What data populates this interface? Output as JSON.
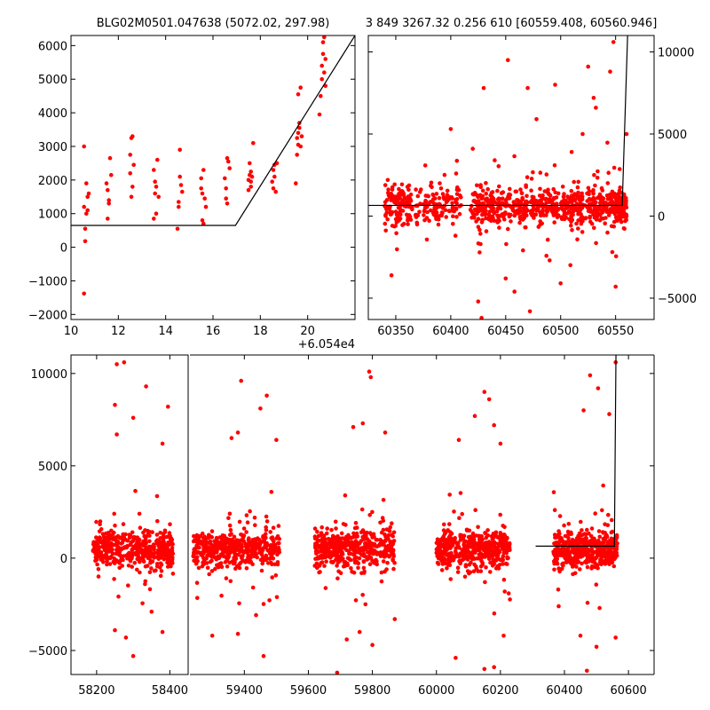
{
  "titles": {
    "left": "BLG02M0501.047638 (5072.02, 297.98)",
    "right": "3 849 3267.32 0.256 610 [60559.408, 60560.946]"
  },
  "chart_data": [
    {
      "id": "top-left",
      "type": "scatter",
      "title": "BLG02M0501.047638 (5072.02, 297.98)",
      "x_offset_label": "+6.054e4",
      "xlim": [
        10,
        22
      ],
      "ylim": [
        -2150,
        6300
      ],
      "xticks": [
        10,
        12,
        14,
        16,
        18,
        20
      ],
      "yticks": [
        -2000,
        -1000,
        0,
        1000,
        2000,
        3000,
        4000,
        5000,
        6000
      ],
      "points": [
        [
          10.55,
          3000
        ],
        [
          10.55,
          1200
        ],
        [
          10.6,
          550
        ],
        [
          10.6,
          180
        ],
        [
          10.55,
          -1380
        ],
        [
          10.65,
          1900
        ],
        [
          10.7,
          1500
        ],
        [
          10.7,
          1100
        ],
        [
          10.75,
          1600
        ],
        [
          10.65,
          1000
        ],
        [
          11.5,
          1900
        ],
        [
          11.55,
          1700
        ],
        [
          11.6,
          1400
        ],
        [
          11.55,
          850
        ],
        [
          11.65,
          2650
        ],
        [
          11.7,
          2150
        ],
        [
          11.6,
          1300
        ],
        [
          12.5,
          2750
        ],
        [
          12.55,
          3250
        ],
        [
          12.6,
          3300
        ],
        [
          12.5,
          2200
        ],
        [
          12.55,
          1500
        ],
        [
          12.6,
          1800
        ],
        [
          12.65,
          2450
        ],
        [
          13.5,
          2300
        ],
        [
          13.55,
          1950
        ],
        [
          13.6,
          1800
        ],
        [
          13.55,
          1600
        ],
        [
          13.6,
          1000
        ],
        [
          13.65,
          2600
        ],
        [
          13.5,
          850
        ],
        [
          13.7,
          1500
        ],
        [
          14.5,
          550
        ],
        [
          14.55,
          1200
        ],
        [
          14.6,
          2900
        ],
        [
          14.6,
          2100
        ],
        [
          14.65,
          1850
        ],
        [
          14.55,
          1350
        ],
        [
          14.7,
          1650
        ],
        [
          15.5,
          1750
        ],
        [
          15.55,
          1600
        ],
        [
          15.5,
          2050
        ],
        [
          15.6,
          2300
        ],
        [
          15.55,
          800
        ],
        [
          15.6,
          700
        ],
        [
          15.65,
          1450
        ],
        [
          15.7,
          1200
        ],
        [
          16.5,
          2050
        ],
        [
          16.55,
          1750
        ],
        [
          16.6,
          2650
        ],
        [
          16.65,
          2550
        ],
        [
          16.55,
          1450
        ],
        [
          16.6,
          1300
        ],
        [
          16.7,
          2350
        ],
        [
          17.5,
          2000
        ],
        [
          17.55,
          2150
        ],
        [
          17.6,
          1950
        ],
        [
          17.55,
          2500
        ],
        [
          17.6,
          1800
        ],
        [
          17.65,
          2100
        ],
        [
          17.7,
          3100
        ],
        [
          17.5,
          1700
        ],
        [
          17.6,
          2250
        ],
        [
          18.5,
          1950
        ],
        [
          18.55,
          2300
        ],
        [
          18.6,
          2450
        ],
        [
          18.55,
          1750
        ],
        [
          18.6,
          2100
        ],
        [
          18.65,
          1650
        ],
        [
          18.7,
          2500
        ],
        [
          19.5,
          1900
        ],
        [
          19.55,
          2750
        ],
        [
          19.6,
          3050
        ],
        [
          19.55,
          3250
        ],
        [
          19.6,
          3400
        ],
        [
          19.65,
          3550
        ],
        [
          19.7,
          4750
        ],
        [
          19.6,
          4550
        ],
        [
          19.65,
          3700
        ],
        [
          19.7,
          3000
        ],
        [
          19.75,
          3300
        ],
        [
          20.5,
          3950
        ],
        [
          20.55,
          4500
        ],
        [
          20.6,
          5000
        ],
        [
          20.6,
          5400
        ],
        [
          20.65,
          5750
        ],
        [
          20.65,
          6100
        ],
        [
          20.7,
          6250
        ],
        [
          20.7,
          5200
        ],
        [
          20.75,
          4800
        ],
        [
          20.75,
          5600
        ]
      ],
      "model_line": [
        [
          10,
          650
        ],
        [
          16.95,
          650
        ],
        [
          22,
          6300
        ]
      ]
    },
    {
      "id": "top-right",
      "type": "scatter",
      "title": "3 849 3267.32 0.256 610 [60559.408, 60560.946]",
      "xlim": [
        60325,
        60585
      ],
      "ylim": [
        -6300,
        11000
      ],
      "xticks": [
        60350,
        60400,
        60450,
        60500,
        60550
      ],
      "yticks": [
        -5000,
        0,
        5000,
        10000
      ],
      "clusters": [
        [
          60340,
          60365
        ],
        [
          60368,
          60410
        ],
        [
          60418,
          60440
        ],
        [
          60442,
          60470
        ],
        [
          60472,
          60498
        ],
        [
          60500,
          60520
        ],
        [
          60522,
          60548
        ],
        [
          60548,
          60560
        ]
      ],
      "outliers": [
        [
          60390,
          2000
        ],
        [
          60400,
          5300
        ],
        [
          60420,
          4100
        ],
        [
          60425,
          -5200
        ],
        [
          60428,
          -6200
        ],
        [
          60430,
          7800
        ],
        [
          60440,
          3400
        ],
        [
          60452,
          9500
        ],
        [
          60450,
          -3800
        ],
        [
          60458,
          -4600
        ],
        [
          60470,
          7800
        ],
        [
          60472,
          -5800
        ],
        [
          60478,
          5900
        ],
        [
          60490,
          -2700
        ],
        [
          60495,
          8000
        ],
        [
          60500,
          -4100
        ],
        [
          60510,
          3900
        ],
        [
          60520,
          5000
        ],
        [
          60525,
          9100
        ],
        [
          60530,
          7200
        ],
        [
          60532,
          6600
        ],
        [
          60545,
          8800
        ],
        [
          60548,
          10600
        ],
        [
          60550,
          -4300
        ],
        [
          60560,
          5000
        ]
      ],
      "model_line": [
        [
          60325,
          650
        ],
        [
          60556,
          650
        ],
        [
          60560.9,
          11000
        ]
      ]
    },
    {
      "id": "bottom",
      "type": "scatter",
      "xlim_left": [
        58130,
        58450
      ],
      "xlim_right": [
        59230,
        60680
      ],
      "ylim": [
        -6300,
        11000
      ],
      "xticks_left": [
        58200,
        58400
      ],
      "xticks_right": [
        59400,
        59600,
        59800,
        60000,
        60200,
        60400,
        60600
      ],
      "yticks": [
        -5000,
        0,
        5000,
        10000
      ],
      "clusters": [
        [
          58190,
          58410
        ],
        [
          59240,
          59510
        ],
        [
          59620,
          59870
        ],
        [
          60000,
          60230
        ],
        [
          60365,
          60565
        ]
      ],
      "outliers": [
        [
          58255,
          10500
        ],
        [
          58275,
          10600
        ],
        [
          58250,
          8300
        ],
        [
          58255,
          6700
        ],
        [
          58300,
          7600
        ],
        [
          58335,
          9300
        ],
        [
          58395,
          8200
        ],
        [
          58380,
          6200
        ],
        [
          58250,
          -3900
        ],
        [
          58280,
          -4300
        ],
        [
          58300,
          -5300
        ],
        [
          58380,
          -4000
        ],
        [
          58350,
          -2900
        ],
        [
          59390,
          9600
        ],
        [
          59470,
          8800
        ],
        [
          59450,
          8100
        ],
        [
          59360,
          6500
        ],
        [
          59380,
          6800
        ],
        [
          59500,
          6400
        ],
        [
          59380,
          -4100
        ],
        [
          59460,
          -5300
        ],
        [
          59300,
          -4200
        ],
        [
          59740,
          7100
        ],
        [
          59770,
          7300
        ],
        [
          59790,
          10100
        ],
        [
          59795,
          9800
        ],
        [
          59840,
          6800
        ],
        [
          59690,
          -6200
        ],
        [
          59720,
          -4400
        ],
        [
          59760,
          -4000
        ],
        [
          59800,
          -4700
        ],
        [
          59870,
          -3300
        ],
        [
          60070,
          6400
        ],
        [
          60120,
          7700
        ],
        [
          60150,
          9000
        ],
        [
          60165,
          8600
        ],
        [
          60180,
          7200
        ],
        [
          60200,
          6200
        ],
        [
          60060,
          -5400
        ],
        [
          60150,
          -6000
        ],
        [
          60180,
          -5900
        ],
        [
          60210,
          -4200
        ],
        [
          60460,
          8000
        ],
        [
          60480,
          9900
        ],
        [
          60505,
          9200
        ],
        [
          60540,
          7800
        ],
        [
          60560,
          10600
        ],
        [
          60560,
          -4300
        ],
        [
          60450,
          -4200
        ],
        [
          60470,
          -6100
        ],
        [
          60500,
          -4800
        ]
      ],
      "model_line": [
        [
          60310,
          650
        ],
        [
          60556,
          650
        ],
        [
          60560.9,
          11000
        ]
      ]
    }
  ]
}
